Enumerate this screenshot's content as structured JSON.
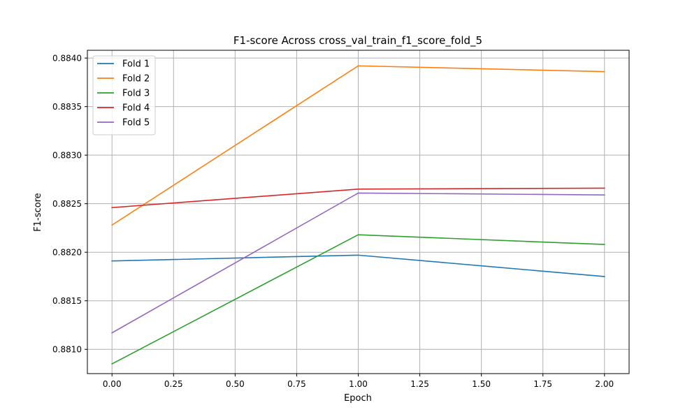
{
  "chart_data": {
    "type": "line",
    "title": "F1-score Across cross_val_train_f1_score_fold_5",
    "xlabel": "Epoch",
    "ylabel": "F1-score",
    "x": [
      0,
      1,
      2
    ],
    "xlim": [
      -0.1,
      2.1
    ],
    "ylim": [
      0.88075,
      0.88408
    ],
    "xticks": [
      0.0,
      0.25,
      0.5,
      0.75,
      1.0,
      1.25,
      1.5,
      1.75,
      2.0
    ],
    "xtick_labels": [
      "0.00",
      "0.25",
      "0.50",
      "0.75",
      "1.00",
      "1.25",
      "1.50",
      "1.75",
      "2.00"
    ],
    "yticks": [
      0.881,
      0.8815,
      0.882,
      0.8825,
      0.883,
      0.8835,
      0.884
    ],
    "ytick_labels": [
      "0.8810",
      "0.8815",
      "0.8820",
      "0.8825",
      "0.8830",
      "0.8835",
      "0.8840"
    ],
    "grid": true,
    "legend_position": "top-left",
    "series": [
      {
        "name": "Fold 1",
        "color": "#1f77b4",
        "values": [
          0.88191,
          0.88197,
          0.88175
        ]
      },
      {
        "name": "Fold 2",
        "color": "#ff7f0e",
        "values": [
          0.88228,
          0.88392,
          0.88386
        ]
      },
      {
        "name": "Fold 3",
        "color": "#2ca02c",
        "values": [
          0.88085,
          0.88218,
          0.88208
        ]
      },
      {
        "name": "Fold 4",
        "color": "#d62728",
        "values": [
          0.88246,
          0.88265,
          0.88266
        ]
      },
      {
        "name": "Fold 5",
        "color": "#9467bd",
        "values": [
          0.88117,
          0.88261,
          0.88259
        ]
      }
    ]
  }
}
